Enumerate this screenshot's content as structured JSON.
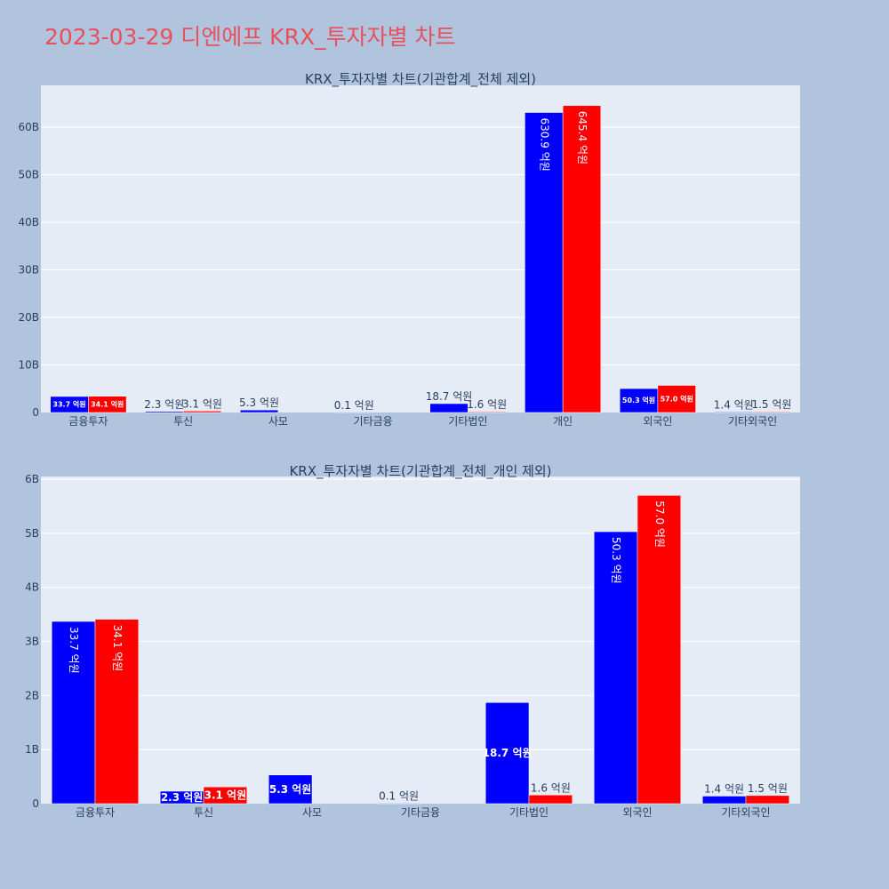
{
  "page": {
    "title": "2023-03-29 디엔에프 KRX_투자자별 차트",
    "background": "#b0c4de",
    "plot_background": "#e5ecf6",
    "title_color": "#e8505b"
  },
  "chart_data": [
    {
      "type": "bar",
      "title": "KRX_투자자별 차트(기관합계_전체 제외)",
      "categories": [
        "금융투자",
        "투신",
        "사모",
        "기타금융",
        "기타법인",
        "개인",
        "외국인",
        "기타외국인"
      ],
      "series": [
        {
          "color": "#0000ff",
          "values": [
            3.37,
            0.23,
            0.53,
            0.01,
            1.87,
            63.09,
            5.03,
            0.14
          ],
          "labels": [
            "33.7 억원",
            "2.3 억원",
            "5.3 억원",
            "0.1 억원",
            "18.7 억원",
            "630.9 억원",
            "50.3 억원",
            "1.4 억원"
          ]
        },
        {
          "color": "#ff0000",
          "values": [
            3.41,
            0.31,
            null,
            null,
            0.16,
            64.54,
            5.7,
            0.15
          ],
          "labels": [
            "34.1 억원",
            "3.1 억원",
            "",
            "",
            "1.6 억원",
            "645.4 억원",
            "57.0 억원",
            "1.5 억원"
          ]
        }
      ],
      "ylim": [
        0,
        68.8
      ],
      "yticks": [
        0,
        10,
        20,
        30,
        40,
        50,
        60
      ],
      "yticklabels": [
        "0",
        "10B",
        "20B",
        "30B",
        "40B",
        "50B",
        "60B"
      ],
      "grid": true
    },
    {
      "type": "bar",
      "title": "KRX_투자자별 차트(기관합계_전체_개인 제외)",
      "categories": [
        "금융투자",
        "투신",
        "사모",
        "기타금융",
        "기타법인",
        "외국인",
        "기타외국인"
      ],
      "series": [
        {
          "color": "#0000ff",
          "values": [
            3.37,
            0.23,
            0.53,
            0.01,
            1.87,
            5.03,
            0.14
          ],
          "labels": [
            "33.7 억원",
            "2.3 억원",
            "5.3 억원",
            "0.1 억원",
            "18.7 억원",
            "50.3 억원",
            "1.4 억원"
          ]
        },
        {
          "color": "#ff0000",
          "values": [
            3.41,
            0.31,
            null,
            null,
            0.16,
            5.7,
            0.15
          ],
          "labels": [
            "34.1 억원",
            "3.1 억원",
            "",
            "",
            "1.6 억원",
            "57.0 억원",
            "1.5 억원"
          ]
        }
      ],
      "ylim": [
        0,
        6.05
      ],
      "yticks": [
        0,
        1,
        2,
        3,
        4,
        5,
        6
      ],
      "yticklabels": [
        "0",
        "1B",
        "2B",
        "3B",
        "4B",
        "5B",
        "6B"
      ],
      "grid": true
    }
  ]
}
